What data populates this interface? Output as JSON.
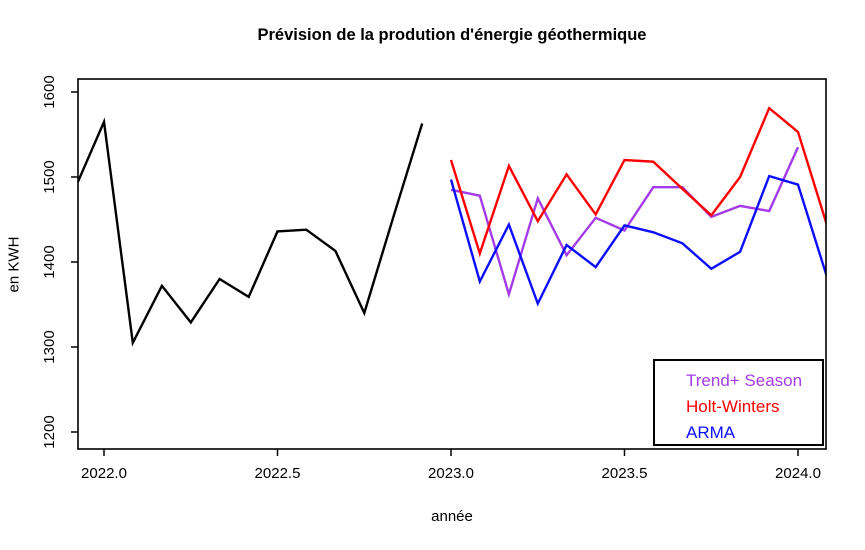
{
  "title": "Prévision de la prodution d'énergie géothermique",
  "chart_data": {
    "type": "line",
    "title": "Prévision de la prodution d'énergie géothermique",
    "xlabel": "année",
    "ylabel": "en KWH",
    "x_tick_labels": [
      "2022.0",
      "2022.5",
      "2023.0",
      "2023.5",
      "2024.0"
    ],
    "x_tick_values": [
      2022.0,
      2022.5,
      2023.0,
      2023.5,
      2024.0
    ],
    "y_tick_labels": [
      "1200",
      "1300",
      "1400",
      "1500",
      "1600"
    ],
    "y_tick_values": [
      1200,
      1300,
      1400,
      1500,
      1600
    ],
    "xlim": [
      2021.92,
      2024.09
    ],
    "ylim": [
      1180,
      1615
    ],
    "grid": false,
    "legend": {
      "position": "bottomright",
      "items": [
        {
          "label": "Trend+ Season",
          "color": "#A43BE8"
        },
        {
          "label": "Holt-Winters",
          "color": "#FF0000"
        },
        {
          "label": "ARMA",
          "color": "#0D0DFF"
        }
      ]
    },
    "series": [
      {
        "name": "observations",
        "color": "#000000",
        "x": [
          2021.917,
          2022.0,
          2022.083,
          2022.167,
          2022.25,
          2022.333,
          2022.417,
          2022.5,
          2022.583,
          2022.667,
          2022.75,
          2022.833,
          2022.917
        ],
        "y": [
          1487,
          1565,
          1305,
          1372,
          1329,
          1380,
          1359,
          1436,
          1438,
          1413,
          1340,
          1452,
          1563
        ]
      },
      {
        "name": "Trend+ Season",
        "color": "#A43BE8",
        "x": [
          2023.0,
          2023.083,
          2023.167,
          2023.25,
          2023.333,
          2023.417,
          2023.5,
          2023.583,
          2023.667,
          2023.75,
          2023.833,
          2023.917,
          2024.0
        ],
        "y": [
          1485,
          1478,
          1362,
          1475,
          1408,
          1452,
          1437,
          1488,
          1488,
          1453,
          1466,
          1460,
          1535
        ]
      },
      {
        "name": "Holt-Winters",
        "color": "#FF0000",
        "x": [
          2023.0,
          2023.083,
          2023.167,
          2023.25,
          2023.333,
          2023.417,
          2023.5,
          2023.583,
          2023.667,
          2023.75,
          2023.833,
          2023.917,
          2024.0,
          2024.083
        ],
        "y": [
          1520,
          1410,
          1513,
          1448,
          1503,
          1456,
          1520,
          1518,
          1486,
          1455,
          1500,
          1581,
          1553,
          1444
        ]
      },
      {
        "name": "ARMA",
        "color": "#0D0DFF",
        "x": [
          2023.0,
          2023.083,
          2023.167,
          2023.25,
          2023.333,
          2023.417,
          2023.5,
          2023.583,
          2023.667,
          2023.75,
          2023.833,
          2023.917,
          2024.0,
          2024.083
        ],
        "y": [
          1497,
          1377,
          1444,
          1351,
          1420,
          1394,
          1443,
          1435,
          1422,
          1392,
          1412,
          1501,
          1491,
          1383
        ]
      }
    ]
  }
}
